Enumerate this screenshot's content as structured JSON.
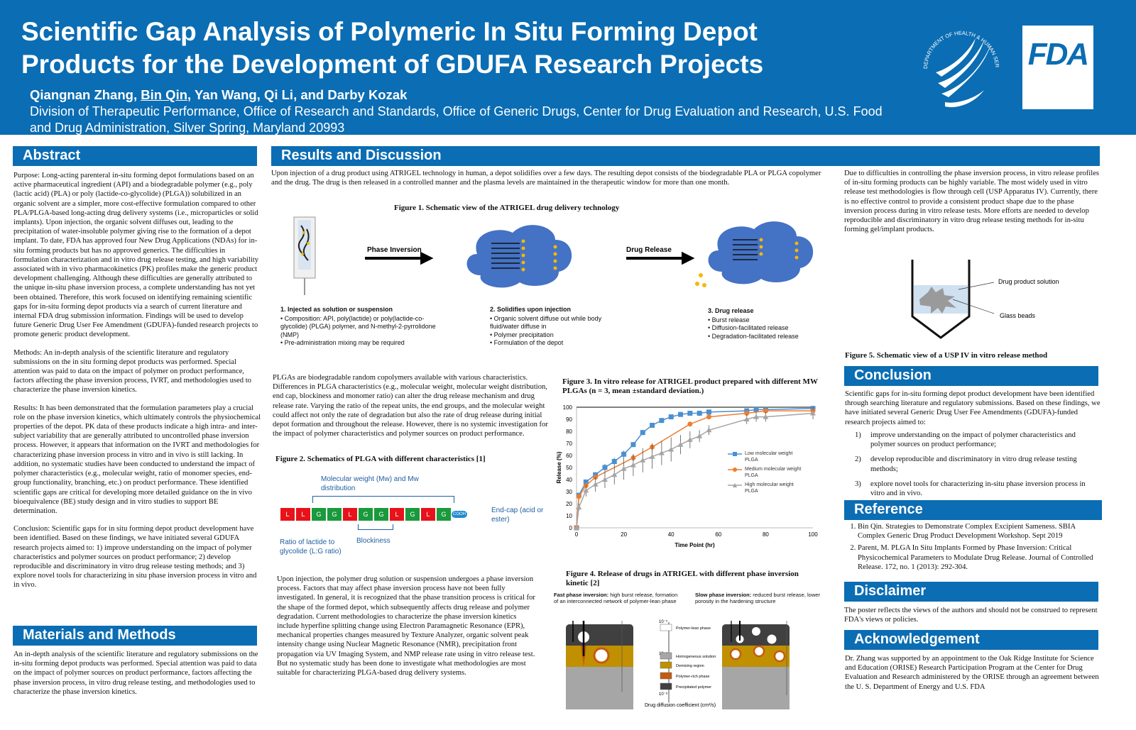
{
  "header": {
    "title": "Scientific Gap Analysis of Polymeric In Situ Forming Depot Products for the Development of GDUFA Research Projects",
    "authors_pre": "Qiangnan Zhang, ",
    "authors_presenter": "Bin Qin",
    "authors_post": ", Yan Wang, Qi Li, and Darby Kozak",
    "affiliation": "Division of Therapeutic Performance, Office of Research and Standards, Office of Generic Drugs, Center for Drug Evaluation and Research, U.S. Food and Drug Administration, Silver Spring, Maryland 20993",
    "hhs_logo_text": "DEPARTMENT OF HEALTH & HUMAN SERVICES · USA",
    "fda_logo": "FDA"
  },
  "abstract": {
    "heading": "Abstract",
    "purpose": "Purpose: Long-acting parenteral in-situ forming depot formulations based on an active pharmaceutical ingredient (API) and a biodegradable polymer (e.g., poly (lactic acid) (PLA) or poly (lactide-co-glycolide) (PLGA)) solubilized in an organic solvent are a simpler, more cost-effective formulation compared to other PLA/PLGA-based long-acting drug delivery systems (i.e., microparticles or solid implants). Upon injection, the organic solvent diffuses out, leading to the precipitation of water-insoluble polymer giving rise to the formation of a depot implant. To date, FDA has approved four New Drug Applications (NDAs) for in-situ forming products but has no approved generics. The difficulties in formulation characterization and in vitro drug release testing, and high variability associated with in vivo pharmacokinetics (PK) profiles make the generic product development challenging. Although these difficulties are generally attributed to the unique in-situ phase inversion process, a complete understanding has not yet been obtained. Therefore, this work focused on identifying remaining scientific gaps for in-situ forming depot products via a search of current literature and internal FDA drug submission information. Findings will be used to develop future Generic Drug User Fee Amendment (GDUFA)-funded research projects to promote generic product development.",
    "methods": "Methods: An in-depth analysis of the scientific literature and regulatory submissions on the in situ forming depot products was performed. Special attention was paid to data on the impact of polymer on product performance, factors affecting the phase inversion process, IVRT, and methodologies used to characterize the phase inversion kinetics.",
    "results": "Results: It has been demonstrated that the formulation parameters play a crucial role on the phase inversion kinetics, which ultimately controls the physiochemical properties of the depot. PK data of these products indicate a high intra- and inter-subject variability that are generally attributed to uncontrolled phase inversion process. However, it appears that information on the IVRT and methodologies for characterizing phase inversion process in vitro and in vivo is still lacking. In addition, no systematic studies have been conducted to understand the impact of polymer characteristics (e.g., molecular weight, ratio of monomer species, end-group functionality, branching, etc.) on product performance. These identified scientific gaps are critical for developing more detailed guidance on the in vivo bioequivalence (BE) study design and in vitro studies to support BE determination.",
    "conclusion": "Conclusion: Scientific gaps for in situ forming depot product development have been identified. Based on these findings, we have initiated several GDUFA research projects aimed to: 1) improve understanding on the impact of polymer characteristics and polymer sources on product performance; 2) develop reproducible and discriminatory in vitro drug release testing methods; and 3) explore novel tools for characterizing in situ phase inversion process in vitro and in vivo."
  },
  "methods": {
    "heading": "Materials and Methods",
    "text": "An in-depth analysis of the scientific literature and regulatory submissions on the in-situ forming depot products was performed. Special attention was paid to data on the impact of polymer sources on product performance, factors affecting the phase inversion process, in vitro drug release testing, and methodologies used to characterize the phase inversion kinetics."
  },
  "results": {
    "heading": "Results and Discussion",
    "intro": "Upon injection of a drug product using ATRIGEL technology in human, a depot solidifies over a few days. The resulting depot consists of the biodegradable PLA or PLGA copolymer and the drug. The drug is then released in a controlled manner and the plasma levels are maintained in the therapeutic window for more than one month.",
    "fig1": {
      "caption": "Figure 1. Schematic view of the ATRIGEL drug delivery technology",
      "arrow1": "Phase Inversion",
      "arrow2": "Drug Release",
      "step1": {
        "title": "1.   Injected as solution or suspension",
        "items": [
          "Composition: API, poly(lactide) or poly(lactide-co-glycolide) (PLGA) polymer, and N-methyl-2-pyrrolidone (NMP)",
          "Pre-administration mixing may be required"
        ]
      },
      "step2": {
        "title": "2. Solidifies upon injection",
        "items": [
          "Organic solvent diffuse out while body fluid/water diffuse in",
          "Polymer precipitation",
          "Formulation of the depot"
        ]
      },
      "step3": {
        "title": "3. Drug release",
        "items": [
          "Burst release",
          "Diffusion-facilitated release",
          "Degradation-facilitated release"
        ]
      }
    },
    "plga_text": "PLGAs are biodegradable random copolymers available with various characteristics. Differences in PLGA characteristics (e.g., molecular weight, molecular weight distribution, end cap, blockiness and monomer ratio) can alter the drug release mechanism and drug release rate. Varying the ratio of the repeat units, the end groups, and the molecular weight could affect not only the rate of degradation but also the rate of drug  release during initial depot formation and throughout the release. However, there is no systemic investigation for the impact of polymer characteristics and polymer sources on product performance.",
    "fig2": {
      "caption": "Figure 2. Schematics of PLGA with different  characteristics [1]",
      "mw_label": "Molecular weight (Mw) and Mw distribution",
      "units": [
        "L",
        "L",
        "G",
        "G",
        "L",
        "G",
        "G",
        "L",
        "G",
        "L",
        "G"
      ],
      "end": "COOH",
      "endcap_label": "End-cap (acid or ester)",
      "ratio_label": "Ratio of lactide to glycolide (L:G ratio)",
      "blockiness_label": "Blockiness",
      "colors": {
        "L": "#e8121a",
        "G": "#1a9a3c",
        "end": "#1f8ad0"
      }
    },
    "phase_text": "Upon injection, the polymer drug solution or suspension undergoes a phase inversion process. Factors that may affect phase inversion process have not been fully investigated. In general, it is recognized that the phase transition process is critical for the shape of the formed depot, which subsequently affects drug release and polymer degradation. Current methodologies to characterize the phase inversion kinetics include hyperfine splitting change using Electron Paramagnetic Resonance (EPR), mechanical properties changes measured by Texture Analyzer, organic solvent peak intensity change using Nuclear Magnetic Resonance (NMR), precipitation front propagation via UV Imaging System, and NMP release rate using in vitro release test. But no systematic study  has been done to investigate what methodologies are most suitable for characterizing PLGA-based drug delivery systems.",
    "fig4": {
      "caption": "Figure 4. Release of drugs in ATRIGEL with different phase inversion kinetic [2]",
      "fast_bold": "Fast phase inversion:",
      "fast_text": " high burst release, formation of an interconnected network of polymer-lean phase",
      "slow_bold": "Slow phase inversion:",
      "slow_text": " reduced burst release, lower porosity in the hardening structure",
      "ticks": [
        "10⁻⁵",
        "10⁻⁷",
        "10⁻⁸"
      ],
      "legend": [
        "Polymer-lean phase",
        "Homogeneous solution",
        "Demixing region",
        "Polymer-rich phase",
        "Precipitated polymer"
      ],
      "legend_colors": [
        "#ffffff",
        "#a6a6a6",
        "#c09000",
        "#c55a11",
        "#404040"
      ],
      "xlabel": "Drug diffusion coefficient (cm²/s)"
    }
  },
  "chart_data": {
    "type": "line",
    "title": "Figure 3. In vitro release for ATRIGEL product prepared with different MW PLGAs (n = 3, mean ±standard deviation.)",
    "xlabel": "Time Point (hr)",
    "ylabel": "Release (%)",
    "xlim": [
      0,
      100
    ],
    "ylim": [
      0,
      100
    ],
    "xticks": [
      0,
      20,
      40,
      60,
      80,
      100
    ],
    "yticks": [
      0,
      10,
      20,
      30,
      40,
      50,
      60,
      70,
      80,
      90,
      100
    ],
    "legend_position": "right",
    "series": [
      {
        "name": "Low molecular weight PLGA",
        "color": "#4a90d0",
        "marker": "square",
        "x": [
          0,
          1,
          4,
          8,
          12,
          16,
          20,
          24,
          28,
          32,
          36,
          40,
          44,
          48,
          52,
          56,
          72,
          76,
          80,
          100
        ],
        "y": [
          0,
          27,
          38,
          44,
          50,
          55,
          61,
          69,
          79,
          85,
          89,
          92,
          94,
          95,
          95,
          96,
          97,
          98,
          98,
          99
        ],
        "err": [
          0,
          1,
          1,
          2,
          3,
          3,
          3,
          2,
          2,
          2,
          1,
          1,
          1,
          1,
          1,
          1,
          1,
          1,
          1,
          1
        ]
      },
      {
        "name": "Medium molecular weight PLGA",
        "color": "#ed7d31",
        "marker": "circle",
        "x": [
          0,
          1,
          4,
          8,
          24,
          32,
          48,
          56,
          72,
          80,
          100
        ],
        "y": [
          0,
          26,
          35,
          42,
          58,
          67,
          86,
          92,
          95,
          97,
          97
        ],
        "err": [
          0,
          2,
          2,
          2,
          3,
          3,
          2,
          1,
          2,
          2,
          2
        ]
      },
      {
        "name": "High molecular weight PLGA",
        "color": "#a5a5a5",
        "marker": "triangle",
        "x": [
          0,
          1,
          4,
          8,
          12,
          16,
          20,
          24,
          28,
          32,
          36,
          40,
          44,
          48,
          52,
          56,
          72,
          76,
          80,
          100
        ],
        "y": [
          0,
          17,
          31,
          36,
          40,
          44,
          49,
          52,
          56,
          59,
          62,
          65,
          69,
          73,
          76,
          81,
          90,
          92,
          92,
          95
        ],
        "err": [
          0,
          3,
          5,
          6,
          7,
          8,
          9,
          9,
          10,
          10,
          10,
          10,
          8,
          7,
          5,
          4,
          4,
          4,
          4,
          5
        ]
      }
    ]
  },
  "right": {
    "ivrt_text": "Due to difficulties in controlling the phase inversion process, in vitro release profiles of in-situ forming products can be highly variable. The most widely used in vitro release test methodologies is  flow through cell (USP Apparatus IV). Currently, there is no effective control to provide a consistent product shape due to the phase inversion process during in vitro release tests.  More efforts are needed to develop reproducible and discriminatory in vitro drug release testing methods for in-situ forming gel/implant products.",
    "fig5": {
      "caption": "Figure 5. Schematic view of a USP IV  in vitro release method",
      "label1": "Drug product solution",
      "label2": "Glass beads"
    },
    "conclusion": {
      "heading": "Conclusion",
      "intro": "Scientific gaps for in-situ forming depot product development have been identified through searching literature and regulatory submissions. Based on these findings, we have initiated several Generic Drug User Fee Amendments (GDUFA)-funded research projects aimed to:",
      "items": [
        "improve understanding on the impact of polymer characteristics and polymer sources on product performance;",
        "develop reproducible and discriminatory in vitro drug release testing methods;",
        "explore novel tools for characterizing in-situ phase inversion process in vitro and in vivo."
      ]
    },
    "reference": {
      "heading": "Reference",
      "items": [
        "Bin Qin. Strategies to Demonstrate Complex Excipient Sameness. SBIA Complex Generic Drug Product Development Workshop. Sept 2019",
        "Parent, M. PLGA In Situ Implants Formed by Phase Inversion: Critical Physicochemical Parameters to Modulate Drug Release. Journal of Controlled Release. 172, no. 1 (2013): 292-304."
      ]
    },
    "disclaimer": {
      "heading": "Disclaimer",
      "text": "The poster reflects the views of the authors and should not be construed to represent FDA's views or policies."
    },
    "ack": {
      "heading": "Acknowledgement",
      "text": "Dr. Zhang was supported by an appointment to the Oak Ridge Institute for Science and Education (ORISE) Research Participation Program at the Center for Drug Evaluation and Research administered by the ORISE through an agreement between the U. S. Department of Energy and U.S. FDA"
    }
  }
}
